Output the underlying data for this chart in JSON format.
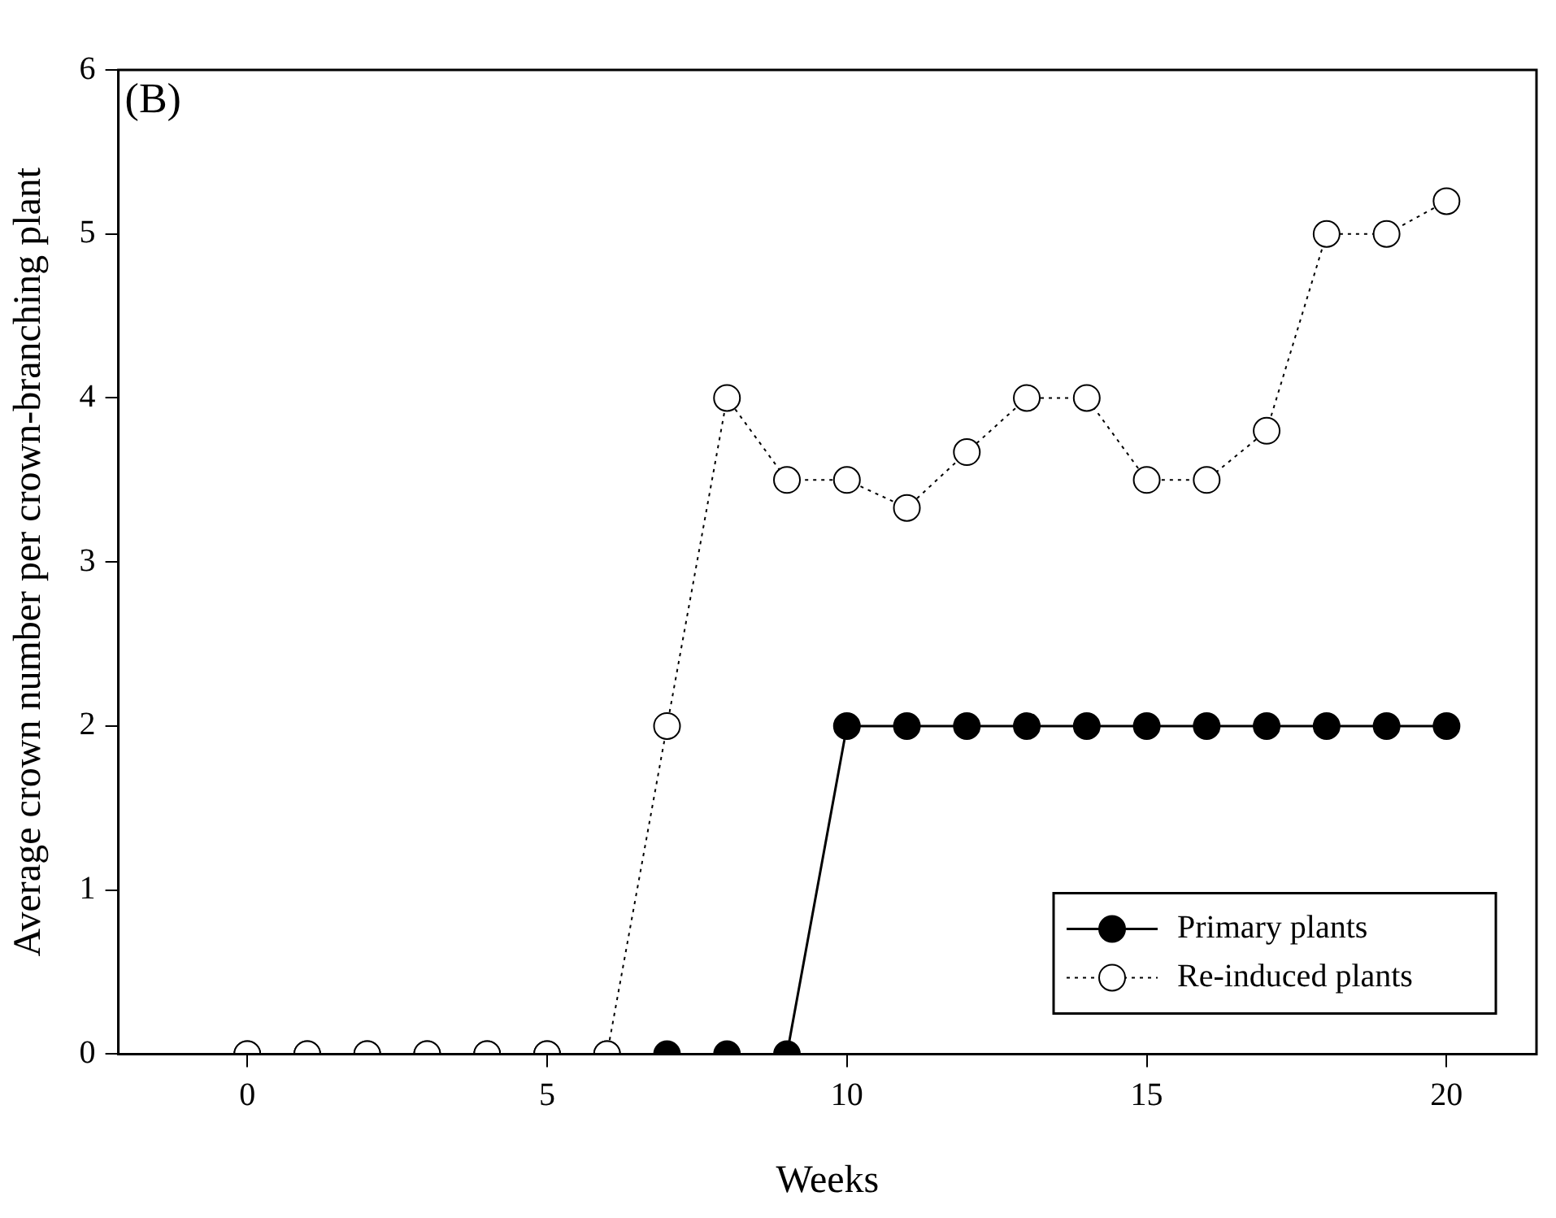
{
  "chart_data": {
    "type": "line",
    "xlabel": "Weeks",
    "ylabel": "Average crown number per crown-branching plant",
    "annotations": [
      "(B)"
    ],
    "x": [
      0,
      1,
      2,
      3,
      4,
      5,
      6,
      7,
      8,
      9,
      10,
      11,
      12,
      13,
      14,
      15,
      16,
      17,
      18,
      19,
      20
    ],
    "series": [
      {
        "name": "Primary plants",
        "color": "#000000",
        "line_style": "solid",
        "values": [
          0,
          0,
          0,
          0,
          0,
          0,
          0,
          0,
          0,
          0,
          2,
          2,
          2,
          2,
          2,
          2,
          2,
          2,
          2,
          2,
          2
        ]
      },
      {
        "name": "Re-induced plants",
        "color": "#000000",
        "line_style": "dotted",
        "values": [
          0,
          0,
          0,
          0,
          0,
          0,
          0,
          2,
          4,
          3.5,
          3.5,
          3.33,
          3.67,
          4,
          4,
          3.5,
          3.5,
          3.8,
          5,
          5,
          5.2
        ]
      }
    ],
    "xlim": [
      -2.15,
      21.5
    ],
    "xticks": [
      0,
      5,
      10,
      15,
      20
    ],
    "ylim": [
      0,
      6
    ],
    "yticks": [
      0,
      1,
      2,
      3,
      4,
      5,
      6
    ],
    "marker": "circle",
    "grid": false,
    "legend": "bottom right"
  }
}
